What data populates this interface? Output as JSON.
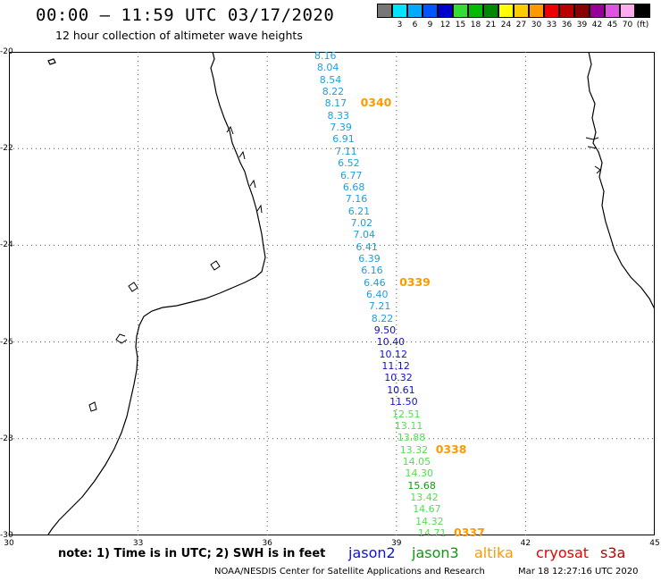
{
  "header": {
    "title": "00:00 — 11:59 UTC 03/17/2020",
    "subtitle": "12 hour collection of altimeter wave heights"
  },
  "legend": {
    "swatches": [
      {
        "color": "#777777",
        "label": ""
      },
      {
        "color": "#00e5ff",
        "label": "3"
      },
      {
        "color": "#00aaff",
        "label": "6"
      },
      {
        "color": "#0055ff",
        "label": "9"
      },
      {
        "color": "#0000cc",
        "label": "12"
      },
      {
        "color": "#33dd33",
        "label": "15"
      },
      {
        "color": "#00bb00",
        "label": "18"
      },
      {
        "color": "#008800",
        "label": "21"
      },
      {
        "color": "#ffff00",
        "label": "24"
      },
      {
        "color": "#ffcc00",
        "label": "27"
      },
      {
        "color": "#ff9900",
        "label": "30"
      },
      {
        "color": "#ee0000",
        "label": "33"
      },
      {
        "color": "#bb0000",
        "label": "36"
      },
      {
        "color": "#880000",
        "label": "39"
      },
      {
        "color": "#990099",
        "label": "42"
      },
      {
        "color": "#dd55dd",
        "label": "45"
      },
      {
        "color": "#ffaaee",
        "label": "70"
      },
      {
        "color": "#000000",
        "label": "(ft)"
      }
    ]
  },
  "axes": {
    "latitudes": [
      "-20",
      "-22",
      "-24",
      "-26",
      "-28",
      "-30"
    ],
    "longitudes": [
      "30",
      "33",
      "36",
      "39",
      "42",
      "45"
    ]
  },
  "track": {
    "swh_values": [
      {
        "v": "8.16",
        "c": "#1e9fdc"
      },
      {
        "v": "8.04",
        "c": "#1e9fdc"
      },
      {
        "v": "8.54",
        "c": "#1e9fdc"
      },
      {
        "v": "8.22",
        "c": "#1e9fdc"
      },
      {
        "v": "8.17",
        "c": "#1e9fdc"
      },
      {
        "v": "8.33",
        "c": "#1e9fdc"
      },
      {
        "v": "7.39",
        "c": "#1e9fdc"
      },
      {
        "v": "6.91",
        "c": "#1e9fdc"
      },
      {
        "v": "7.11",
        "c": "#1e9fdc"
      },
      {
        "v": "6.52",
        "c": "#1e9fdc"
      },
      {
        "v": "6.77",
        "c": "#1e9fdc"
      },
      {
        "v": "6.68",
        "c": "#1e9fdc"
      },
      {
        "v": "7.16",
        "c": "#1e9fdc"
      },
      {
        "v": "6.21",
        "c": "#1e9fdc"
      },
      {
        "v": "7.02",
        "c": "#1e9fdc"
      },
      {
        "v": "7.04",
        "c": "#1e9fdc"
      },
      {
        "v": "6.41",
        "c": "#1e9fdc"
      },
      {
        "v": "6.39",
        "c": "#1e9fdc"
      },
      {
        "v": "6.16",
        "c": "#1e9fdc"
      },
      {
        "v": "6.46",
        "c": "#1e9fdc"
      },
      {
        "v": "6.40",
        "c": "#1e9fdc"
      },
      {
        "v": "7.21",
        "c": "#1e9fdc"
      },
      {
        "v": "8.22",
        "c": "#1e9fdc"
      },
      {
        "v": "9.50",
        "c": "#1111cc"
      },
      {
        "v": "10.40",
        "c": "#1111cc"
      },
      {
        "v": "10.12",
        "c": "#1111cc"
      },
      {
        "v": "11.12",
        "c": "#1111cc"
      },
      {
        "v": "10.32",
        "c": "#1111cc"
      },
      {
        "v": "10.61",
        "c": "#1111cc"
      },
      {
        "v": "11.50",
        "c": "#1111cc"
      },
      {
        "v": "12.51",
        "c": "#55dd55"
      },
      {
        "v": "13.11",
        "c": "#55dd55"
      },
      {
        "v": "13.88",
        "c": "#55dd55"
      },
      {
        "v": "13.32",
        "c": "#55dd55"
      },
      {
        "v": "14.05",
        "c": "#55dd55"
      },
      {
        "v": "14.30",
        "c": "#55dd55"
      },
      {
        "v": "15.68",
        "c": "#119911"
      },
      {
        "v": "13.42",
        "c": "#55dd55"
      },
      {
        "v": "14.67",
        "c": "#55dd55"
      },
      {
        "v": "14.32",
        "c": "#55dd55"
      },
      {
        "v": "14.71",
        "c": "#55dd55"
      }
    ],
    "time_marks": [
      "0340",
      "0339",
      "0338",
      "0337"
    ]
  },
  "footer": {
    "note": "note: 1) Time is in UTC; 2) SWH is in feet",
    "satellites": [
      {
        "name": "jason2",
        "color": "#1111dd"
      },
      {
        "name": "jason3",
        "color": "#119911"
      },
      {
        "name": "altika",
        "color": "#ff9900"
      },
      {
        "name": "cryosat",
        "color": "#ee0000"
      },
      {
        "name": "s3a",
        "color": "#bb0000"
      }
    ],
    "credit": "NOAA/NESDIS Center for Satellite Applications and Research",
    "timestamp": "Mar 18 12:27:16 UTC 2020"
  },
  "colors": {
    "grid": "#555555",
    "coast": "#000000"
  }
}
